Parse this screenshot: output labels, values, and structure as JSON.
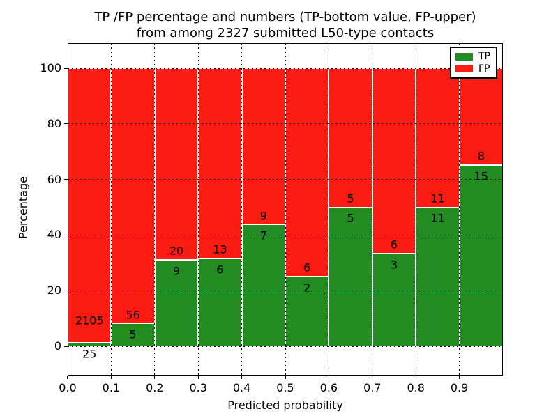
{
  "chart_data": {
    "type": "bar",
    "stacked": true,
    "title_line1": "TP /FP percentage and numbers (TP-bottom value, FP-upper)",
    "title_line2": "from among 2327 submitted L50-type contacts",
    "xlabel": "Predicted probability",
    "ylabel": "Percentage",
    "total_contacts": 2327,
    "xlim": [
      0.0,
      1.0
    ],
    "ylim": [
      -10.5,
      109
    ],
    "bin_width": 0.1,
    "grid": true,
    "legend_position": "upper right",
    "x_tick_labels": [
      "0.0",
      "0.1",
      "0.2",
      "0.3",
      "0.4",
      "0.5",
      "0.6",
      "0.7",
      "0.8",
      "0.9"
    ],
    "y_tick_values": [
      0,
      20,
      40,
      60,
      80,
      100
    ],
    "legend": [
      {
        "label": "TP",
        "color": "#228b22"
      },
      {
        "label": "FP",
        "color": "#fa1b13"
      }
    ],
    "bars": [
      {
        "bin_start": 0.0,
        "tp": 25,
        "fp": 2105
      },
      {
        "bin_start": 0.1,
        "tp": 5,
        "fp": 56
      },
      {
        "bin_start": 0.2,
        "tp": 9,
        "fp": 20
      },
      {
        "bin_start": 0.3,
        "tp": 6,
        "fp": 13
      },
      {
        "bin_start": 0.4,
        "tp": 7,
        "fp": 9
      },
      {
        "bin_start": 0.5,
        "tp": 2,
        "fp": 6
      },
      {
        "bin_start": 0.6,
        "tp": 5,
        "fp": 5
      },
      {
        "bin_start": 0.7,
        "tp": 3,
        "fp": 6
      },
      {
        "bin_start": 0.8,
        "tp": 11,
        "fp": 11
      },
      {
        "bin_start": 0.9,
        "tp": 15,
        "fp": 8
      }
    ]
  }
}
